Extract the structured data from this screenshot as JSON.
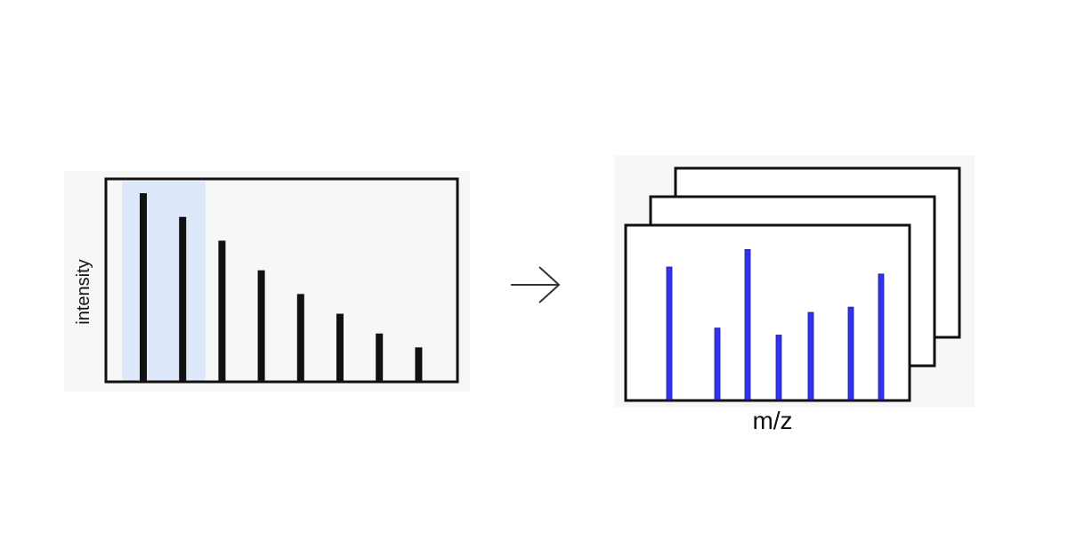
{
  "left_panel": {
    "ylabel": "intensity",
    "bars": [
      0.95,
      0.83,
      0.71,
      0.56,
      0.44,
      0.34,
      0.24,
      0.17
    ],
    "highlighted_bars": [
      0,
      1
    ],
    "bar_color": "#111111",
    "highlight_color": "#dde9fb"
  },
  "arrow": {
    "icon": "right-arrow-icon",
    "color": "#333333"
  },
  "right_panel": {
    "xlabel": "m/z",
    "stack_count": 3,
    "bars": [
      0.76,
      0.41,
      0.86,
      0.37,
      0.5,
      0.53,
      0.72
    ],
    "bar_color": "#3333ee"
  },
  "colors": {
    "frame": "#111111",
    "background": "#ffffff",
    "panel_backdrop": "#f7f7f7"
  }
}
